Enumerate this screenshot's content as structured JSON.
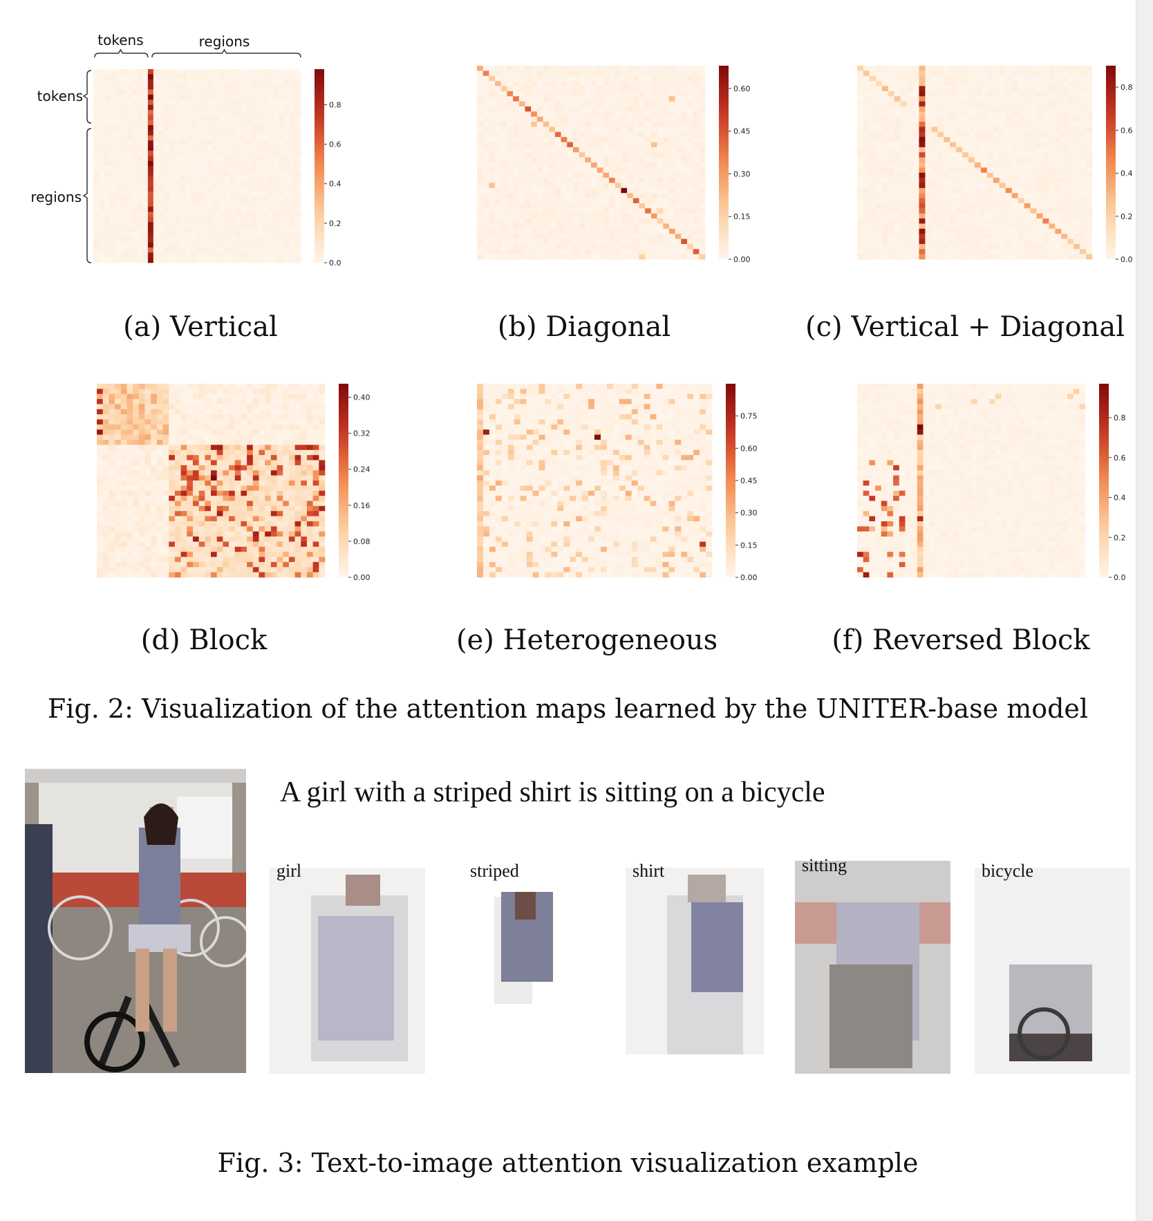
{
  "chart_data": [
    {
      "type": "heatmap",
      "id": "a",
      "pattern": "vertical",
      "caption": "(a) Vertical",
      "vmin": 0,
      "vmax": 0.98,
      "colorbar_ticks": [
        "0.0",
        "0.2",
        "0.4",
        "0.6",
        "0.8"
      ],
      "colorbar_tick_values": [
        0,
        0.2,
        0.4,
        0.6,
        0.8
      ],
      "annotations": {
        "top_tokens": "tokens",
        "top_regions": "regions",
        "left_tokens": "tokens",
        "left_regions": "regions"
      }
    },
    {
      "type": "heatmap",
      "id": "b",
      "pattern": "diagonal",
      "caption": "(b) Diagonal",
      "vmin": 0,
      "vmax": 0.68,
      "colorbar_ticks": [
        "0.00",
        "0.15",
        "0.30",
        "0.45",
        "0.60"
      ],
      "colorbar_tick_values": [
        0,
        0.15,
        0.3,
        0.45,
        0.6
      ]
    },
    {
      "type": "heatmap",
      "id": "c",
      "pattern": "vertical_diagonal",
      "caption": "(c) Vertical + Diagonal",
      "vmin": 0,
      "vmax": 0.9,
      "colorbar_ticks": [
        "0.0",
        "0.2",
        "0.4",
        "0.6",
        "0.8"
      ],
      "colorbar_tick_values": [
        0,
        0.2,
        0.4,
        0.6,
        0.8
      ]
    },
    {
      "type": "heatmap",
      "id": "d",
      "pattern": "block",
      "caption": "(d) Block",
      "vmin": 0,
      "vmax": 0.43,
      "colorbar_ticks": [
        "0.00",
        "0.08",
        "0.16",
        "0.24",
        "0.32",
        "0.40"
      ],
      "colorbar_tick_values": [
        0,
        0.08,
        0.16,
        0.24,
        0.32,
        0.4
      ]
    },
    {
      "type": "heatmap",
      "id": "e",
      "pattern": "heterogeneous",
      "caption": "(e) Heterogeneous",
      "vmin": 0,
      "vmax": 0.9,
      "colorbar_ticks": [
        "0.00",
        "0.15",
        "0.30",
        "0.45",
        "0.60",
        "0.75"
      ],
      "colorbar_tick_values": [
        0,
        0.15,
        0.3,
        0.45,
        0.6,
        0.75
      ]
    },
    {
      "type": "heatmap",
      "id": "f",
      "pattern": "reversed_block",
      "caption": "(f) Reversed Block",
      "vmin": 0,
      "vmax": 0.97,
      "colorbar_ticks": [
        "0.0",
        "0.2",
        "0.4",
        "0.6",
        "0.8"
      ],
      "colorbar_tick_values": [
        0,
        0.2,
        0.4,
        0.6,
        0.8
      ]
    }
  ],
  "fig2_caption": "Fig. 2: Visualization of the attention maps learned by the UNITER-base model",
  "fig3": {
    "sentence": "A girl with a striped shirt is sitting on a bicycle",
    "words": [
      "girl",
      "striped",
      "shirt",
      "sitting",
      "bicycle"
    ],
    "caption": "Fig. 3: Text-to-image attention visualization example"
  },
  "colors": {
    "low": "#fff5eb",
    "mid": "#f08c50",
    "high": "#7f0a0a",
    "background": "#ffffff"
  }
}
